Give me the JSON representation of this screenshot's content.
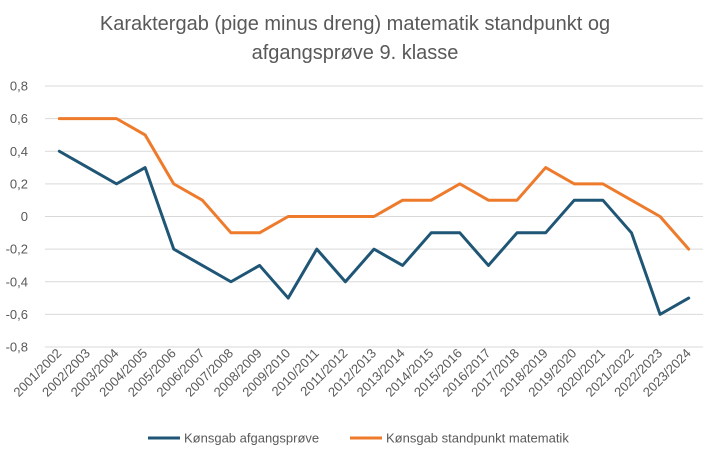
{
  "chart_data": {
    "type": "line",
    "title_lines": [
      "Karaktergab (pige minus dreng) matematik standpunkt og",
      "afgangsprøve 9. klasse"
    ],
    "xlabel": "",
    "ylabel": "",
    "ylim": [
      -0.8,
      0.8
    ],
    "yticks": [
      0.8,
      0.6,
      0.4,
      0.2,
      0,
      -0.2,
      -0.4,
      -0.6,
      -0.8
    ],
    "ytick_labels": [
      "0,8",
      "0,6",
      "0,4",
      "0,2",
      "0",
      "-0,2",
      "-0,4",
      "-0,6",
      "-0,8"
    ],
    "grid": "horizontal",
    "legend_position": "bottom",
    "categories": [
      "2001/2002",
      "2002/2003",
      "2003/2004",
      "2004/2005",
      "2005/2006",
      "2006/2007",
      "2007/2008",
      "2008/2009",
      "2009/2010",
      "2010/2011",
      "2011/2012",
      "2012/2013",
      "2013/2014",
      "2014/2015",
      "2015/2016",
      "2016/2017",
      "2017/2018",
      "2018/2019",
      "2019/2020",
      "2020/2021",
      "2021/2022",
      "2022/2023",
      "2023/2024"
    ],
    "series": [
      {
        "name": "Kønsgab afgangsprøve",
        "color": "#1f5675",
        "values": [
          0.4,
          0.3,
          0.2,
          0.3,
          -0.2,
          -0.3,
          -0.4,
          -0.3,
          -0.5,
          -0.2,
          -0.4,
          -0.2,
          -0.3,
          -0.1,
          -0.1,
          -0.3,
          -0.1,
          -0.1,
          0.1,
          0.1,
          -0.1,
          -0.6,
          -0.5
        ]
      },
      {
        "name": "Kønsgab standpunkt matematik",
        "color": "#ee7b2c",
        "values": [
          0.6,
          0.6,
          0.6,
          0.5,
          0.2,
          0.1,
          -0.1,
          -0.1,
          0.0,
          0.0,
          0.0,
          0.0,
          0.1,
          0.1,
          0.2,
          0.1,
          0.1,
          0.3,
          0.2,
          0.2,
          0.1,
          0.0,
          -0.2
        ]
      }
    ]
  }
}
